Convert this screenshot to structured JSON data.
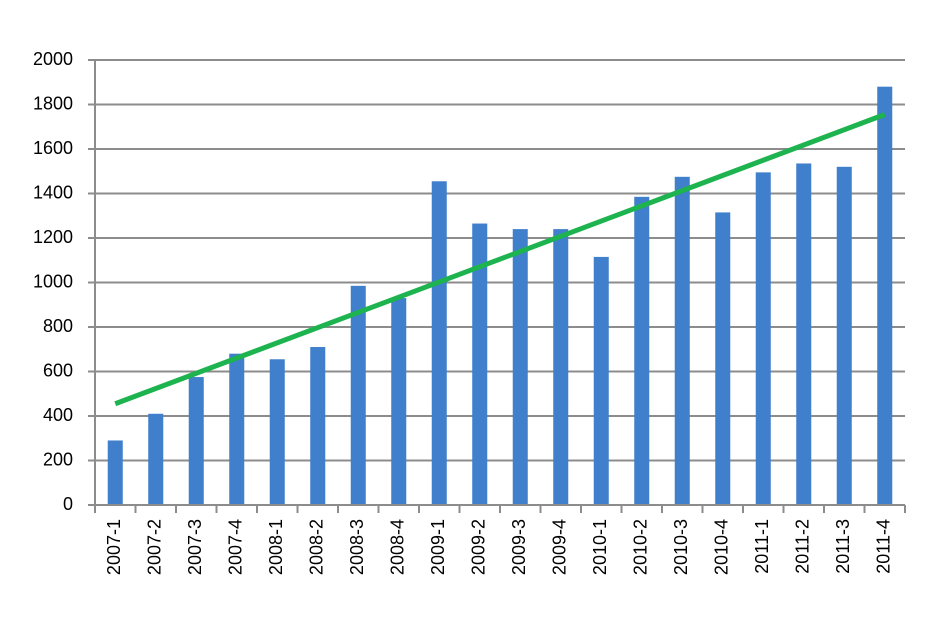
{
  "chart_data": {
    "type": "bar",
    "categories": [
      "2007-1",
      "2007-2",
      "2007-3",
      "2007-4",
      "2008-1",
      "2008-2",
      "2008-3",
      "2008-4",
      "2009-1",
      "2009-2",
      "2009-3",
      "2009-4",
      "2010-1",
      "2010-2",
      "2010-3",
      "2010-4",
      "2011-1",
      "2011-2",
      "2011-3",
      "2011-4"
    ],
    "values": [
      290,
      410,
      575,
      680,
      655,
      710,
      985,
      930,
      1455,
      1265,
      1240,
      1240,
      1115,
      1385,
      1475,
      1315,
      1495,
      1535,
      1520,
      1880
    ],
    "color": "#3f7fcc",
    "trendline": {
      "color": "#1db34f",
      "values": [
        455,
        1755
      ]
    },
    "ylim": [
      0,
      2000
    ],
    "yticks": [
      0,
      200,
      400,
      600,
      800,
      1000,
      1200,
      1400,
      1600,
      1800,
      2000
    ],
    "grid": true
  }
}
